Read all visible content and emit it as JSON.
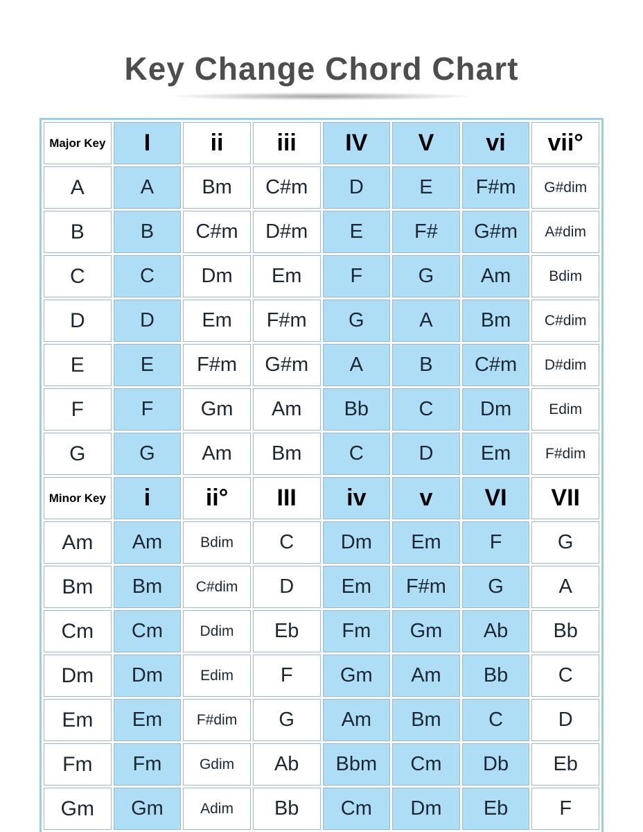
{
  "colors": {
    "cell_blue": "#aeddf6",
    "table_border": "#a0cbe4",
    "grid_line": "#9cb9ca",
    "title_gray": "#4d4d4d",
    "text_dark": "#1c2733"
  },
  "chart_data": {
    "type": "table",
    "title": "Key Change Chord Chart",
    "sections": [
      {
        "label": "Major Key",
        "columns": [
          "I",
          "ii",
          "iii",
          "IV",
          "V",
          "vi",
          "vii°"
        ],
        "rows": [
          {
            "key": "A",
            "chords": [
              "A",
              "Bm",
              "C#m",
              "D",
              "E",
              "F#m",
              "G#dim"
            ]
          },
          {
            "key": "B",
            "chords": [
              "B",
              "C#m",
              "D#m",
              "E",
              "F#",
              "G#m",
              "A#dim"
            ]
          },
          {
            "key": "C",
            "chords": [
              "C",
              "Dm",
              "Em",
              "F",
              "G",
              "Am",
              "Bdim"
            ]
          },
          {
            "key": "D",
            "chords": [
              "D",
              "Em",
              "F#m",
              "G",
              "A",
              "Bm",
              "C#dim"
            ]
          },
          {
            "key": "E",
            "chords": [
              "E",
              "F#m",
              "G#m",
              "A",
              "B",
              "C#m",
              "D#dim"
            ]
          },
          {
            "key": "F",
            "chords": [
              "F",
              "Gm",
              "Am",
              "Bb",
              "C",
              "Dm",
              "Edim"
            ]
          },
          {
            "key": "G",
            "chords": [
              "G",
              "Am",
              "Bm",
              "C",
              "D",
              "Em",
              "F#dim"
            ]
          }
        ]
      },
      {
        "label": "Minor Key",
        "columns": [
          "i",
          "ii°",
          "III",
          "iv",
          "v",
          "VI",
          "VII"
        ],
        "rows": [
          {
            "key": "Am",
            "chords": [
              "Am",
              "Bdim",
              "C",
              "Dm",
              "Em",
              "F",
              "G"
            ]
          },
          {
            "key": "Bm",
            "chords": [
              "Bm",
              "C#dim",
              "D",
              "Em",
              "F#m",
              "G",
              "A"
            ]
          },
          {
            "key": "Cm",
            "chords": [
              "Cm",
              "Ddim",
              "Eb",
              "Fm",
              "Gm",
              "Ab",
              "Bb"
            ]
          },
          {
            "key": "Dm",
            "chords": [
              "Dm",
              "Edim",
              "F",
              "Gm",
              "Am",
              "Bb",
              "C"
            ]
          },
          {
            "key": "Em",
            "chords": [
              "Em",
              "F#dim",
              "G",
              "Am",
              "Bm",
              "C",
              "D"
            ]
          },
          {
            "key": "Fm",
            "chords": [
              "Fm",
              "Gdim",
              "Ab",
              "Bbm",
              "Cm",
              "Db",
              "Eb"
            ]
          },
          {
            "key": "Gm",
            "chords": [
              "Gm",
              "Adim",
              "Bb",
              "Cm",
              "Dm",
              "Eb",
              "F"
            ]
          }
        ]
      }
    ]
  }
}
